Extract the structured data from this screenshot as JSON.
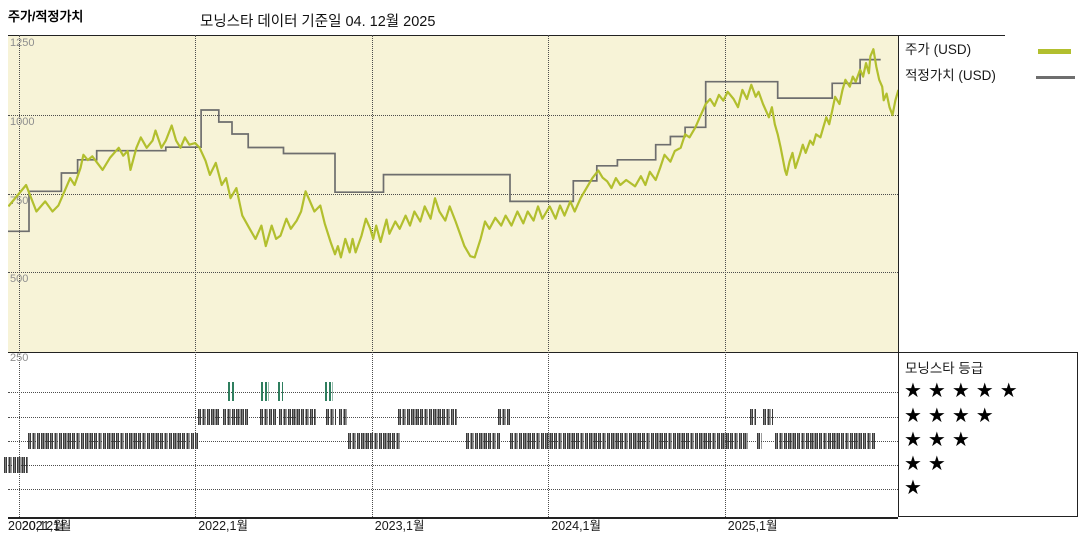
{
  "header": {
    "title": "주가/적정가치",
    "as_of": "모닝스타 데이터 기준일 04. 12월 2025"
  },
  "legend": {
    "price_label": "주가 (USD)",
    "fair_value_label": "적정가치 (USD)"
  },
  "rating_legend": {
    "title": "모닝스타 등급",
    "rows": [
      "★★★★★",
      "★★★★",
      "★★★",
      "★★",
      "★"
    ]
  },
  "colors": {
    "price_line": "#b2bf2e",
    "fair_value_line": "#6e6e6e",
    "plot_background": "#f7f3d7",
    "rating_tick_dark": "#3a3a3a",
    "rating_tick_green": "#2f7e5e",
    "grid_dotted": "#4d4d4d",
    "border": "#222222"
  },
  "y_axis": {
    "ticks": [
      1250,
      1000,
      750,
      500,
      250
    ],
    "inner_gridlines": [
      1000,
      750,
      500
    ],
    "min": 250,
    "max": 1250
  },
  "x_axis": {
    "unit": "months since 2020-12",
    "gridline_months": [
      1,
      13,
      25,
      37,
      49
    ],
    "labels": [
      {
        "month": 0,
        "text": "2020,12월"
      },
      {
        "month": 1,
        "text": "2021,1월"
      },
      {
        "month": 13,
        "text": "2022,1월"
      },
      {
        "month": 25,
        "text": "2023,1월"
      },
      {
        "month": 37,
        "text": "2024,1월"
      },
      {
        "month": 49,
        "text": "2025,1월"
      }
    ]
  },
  "chart_data": {
    "type": "line",
    "title": "주가/적정가치",
    "x_unit": "months since 2020-12",
    "ylim": [
      250,
      1250
    ],
    "series": [
      {
        "name": "주가 (USD)",
        "kind": "price",
        "points": [
          [
            0.3,
            709
          ],
          [
            1.5,
            777
          ],
          [
            2.2,
            693
          ],
          [
            2.8,
            725
          ],
          [
            3.3,
            693
          ],
          [
            3.7,
            712
          ],
          [
            4.5,
            799
          ],
          [
            4.8,
            777
          ],
          [
            5.2,
            831
          ],
          [
            5.4,
            873
          ],
          [
            5.7,
            856
          ],
          [
            6.0,
            868
          ],
          [
            6.7,
            825
          ],
          [
            7.2,
            863
          ],
          [
            7.8,
            895
          ],
          [
            8.1,
            870
          ],
          [
            8.4,
            885
          ],
          [
            8.6,
            825
          ],
          [
            9.0,
            895
          ],
          [
            9.3,
            928
          ],
          [
            9.7,
            895
          ],
          [
            10.1,
            918
          ],
          [
            10.3,
            950
          ],
          [
            10.7,
            895
          ],
          [
            11.0,
            918
          ],
          [
            11.4,
            966
          ],
          [
            11.7,
            918
          ],
          [
            12.0,
            895
          ],
          [
            12.3,
            928
          ],
          [
            12.6,
            905
          ],
          [
            13.0,
            910
          ],
          [
            13.3,
            895
          ],
          [
            13.7,
            854
          ],
          [
            14.0,
            809
          ],
          [
            14.4,
            847
          ],
          [
            14.8,
            777
          ],
          [
            15.1,
            799
          ],
          [
            15.4,
            735
          ],
          [
            15.8,
            767
          ],
          [
            16.2,
            680
          ],
          [
            16.7,
            638
          ],
          [
            17.1,
            606
          ],
          [
            17.5,
            648
          ],
          [
            17.8,
            583
          ],
          [
            18.2,
            648
          ],
          [
            18.5,
            606
          ],
          [
            18.8,
            616
          ],
          [
            19.2,
            670
          ],
          [
            19.5,
            638
          ],
          [
            19.9,
            664
          ],
          [
            20.2,
            693
          ],
          [
            20.5,
            757
          ],
          [
            21.1,
            693
          ],
          [
            21.5,
            712
          ],
          [
            21.8,
            655
          ],
          [
            22.2,
            596
          ],
          [
            22.5,
            557
          ],
          [
            22.7,
            583
          ],
          [
            22.9,
            547
          ],
          [
            23.2,
            606
          ],
          [
            23.5,
            563
          ],
          [
            23.7,
            606
          ],
          [
            23.9,
            563
          ],
          [
            24.3,
            616
          ],
          [
            24.6,
            670
          ],
          [
            24.9,
            638
          ],
          [
            25.1,
            606
          ],
          [
            25.3,
            648
          ],
          [
            25.6,
            596
          ],
          [
            25.8,
            632
          ],
          [
            26.0,
            667
          ],
          [
            26.2,
            622
          ],
          [
            26.6,
            661
          ],
          [
            26.9,
            638
          ],
          [
            27.3,
            680
          ],
          [
            27.6,
            648
          ],
          [
            27.9,
            693
          ],
          [
            28.3,
            661
          ],
          [
            28.6,
            709
          ],
          [
            29.0,
            670
          ],
          [
            29.3,
            735
          ],
          [
            29.6,
            693
          ],
          [
            30.0,
            664
          ],
          [
            30.3,
            709
          ],
          [
            30.7,
            661
          ],
          [
            31.0,
            622
          ],
          [
            31.3,
            583
          ],
          [
            31.7,
            551
          ],
          [
            32.0,
            547
          ],
          [
            32.4,
            606
          ],
          [
            32.7,
            661
          ],
          [
            33.0,
            638
          ],
          [
            33.4,
            673
          ],
          [
            33.8,
            648
          ],
          [
            34.1,
            680
          ],
          [
            34.5,
            648
          ],
          [
            34.9,
            693
          ],
          [
            35.3,
            655
          ],
          [
            35.6,
            693
          ],
          [
            36.0,
            664
          ],
          [
            36.3,
            709
          ],
          [
            36.6,
            670
          ],
          [
            37.1,
            709
          ],
          [
            37.5,
            670
          ],
          [
            37.8,
            712
          ],
          [
            38.1,
            680
          ],
          [
            38.5,
            725
          ],
          [
            38.8,
            693
          ],
          [
            39.2,
            735
          ],
          [
            39.6,
            767
          ],
          [
            40.0,
            799
          ],
          [
            40.4,
            823
          ],
          [
            40.7,
            800
          ],
          [
            41.0,
            789
          ],
          [
            41.3,
            767
          ],
          [
            41.6,
            799
          ],
          [
            41.9,
            777
          ],
          [
            42.3,
            793
          ],
          [
            42.6,
            783
          ],
          [
            42.9,
            773
          ],
          [
            43.3,
            805
          ],
          [
            43.6,
            777
          ],
          [
            43.9,
            819
          ],
          [
            44.3,
            793
          ],
          [
            44.6,
            831
          ],
          [
            44.9,
            873
          ],
          [
            45.3,
            851
          ],
          [
            45.6,
            885
          ],
          [
            46.0,
            895
          ],
          [
            46.3,
            938
          ],
          [
            46.6,
            928
          ],
          [
            47.0,
            960
          ],
          [
            47.3,
            992
          ],
          [
            47.7,
            1034
          ],
          [
            48.0,
            1050
          ],
          [
            48.3,
            1028
          ],
          [
            48.6,
            1063
          ],
          [
            48.9,
            1045
          ],
          [
            49.2,
            1073
          ],
          [
            49.6,
            1050
          ],
          [
            49.9,
            1024
          ],
          [
            50.2,
            1079
          ],
          [
            50.5,
            1050
          ],
          [
            50.8,
            1095
          ],
          [
            51.1,
            1057
          ],
          [
            51.3,
            1073
          ],
          [
            51.6,
            1034
          ],
          [
            52.0,
            992
          ],
          [
            52.2,
            1024
          ],
          [
            52.4,
            970
          ],
          [
            52.6,
            938
          ],
          [
            52.8,
            895
          ],
          [
            53.1,
            823
          ],
          [
            53.2,
            809
          ],
          [
            53.4,
            851
          ],
          [
            53.6,
            879
          ],
          [
            53.8,
            831
          ],
          [
            54.1,
            873
          ],
          [
            54.3,
            905
          ],
          [
            54.5,
            879
          ],
          [
            54.8,
            918
          ],
          [
            55.0,
            905
          ],
          [
            55.2,
            938
          ],
          [
            55.5,
            928
          ],
          [
            55.7,
            960
          ],
          [
            55.9,
            992
          ],
          [
            56.1,
            970
          ],
          [
            56.3,
            1013
          ],
          [
            56.5,
            1057
          ],
          [
            56.8,
            1034
          ],
          [
            57.0,
            1079
          ],
          [
            57.2,
            1111
          ],
          [
            57.5,
            1089
          ],
          [
            57.7,
            1121
          ],
          [
            57.9,
            1105
          ],
          [
            58.2,
            1143
          ],
          [
            58.4,
            1121
          ],
          [
            58.6,
            1164
          ],
          [
            58.8,
            1132
          ],
          [
            58.9,
            1186
          ],
          [
            59.1,
            1208
          ],
          [
            59.3,
            1153
          ],
          [
            59.5,
            1111
          ],
          [
            59.7,
            1089
          ],
          [
            59.8,
            1046
          ],
          [
            60.0,
            1067
          ],
          [
            60.2,
            1024
          ],
          [
            60.4,
            999
          ],
          [
            60.6,
            1046
          ],
          [
            60.8,
            1079
          ]
        ]
      },
      {
        "name": "적정가치 (USD)",
        "kind": "step",
        "steps": [
          [
            0,
            630
          ],
          [
            1.7,
            757
          ],
          [
            3.9,
            815
          ],
          [
            5.0,
            857
          ],
          [
            6.3,
            886
          ],
          [
            11.0,
            897
          ],
          [
            13.4,
            1015
          ],
          [
            14.6,
            977
          ],
          [
            15.5,
            939
          ],
          [
            16.6,
            896
          ],
          [
            19.0,
            877
          ],
          [
            22.5,
            754
          ],
          [
            25.8,
            810
          ],
          [
            34.4,
            725
          ],
          [
            38.7,
            790
          ],
          [
            40.3,
            838
          ],
          [
            41.7,
            857
          ],
          [
            44.3,
            905
          ],
          [
            45.3,
            931
          ],
          [
            46.3,
            960
          ],
          [
            47.7,
            1105
          ],
          [
            52.6,
            1053
          ],
          [
            56.3,
            1100
          ],
          [
            58.2,
            1175
          ]
        ],
        "end_month": 59.6
      }
    ],
    "ratings_timeline": {
      "rows": [
        {
          "stars": 5,
          "color": "green",
          "segments": [
            [
              15.2,
              15.7
            ],
            [
              17.5,
              18.0
            ],
            [
              18.6,
              19.0
            ],
            [
              21.8,
              22.4
            ]
          ]
        },
        {
          "stars": 4,
          "color": "dark",
          "segments": [
            [
              13.2,
              14.7
            ],
            [
              14.9,
              16.6
            ],
            [
              17.4,
              18.5
            ],
            [
              18.7,
              21.2
            ],
            [
              21.9,
              22.6
            ],
            [
              22.8,
              23.4
            ],
            [
              26.8,
              30.8
            ],
            [
              33.6,
              34.4
            ],
            [
              50.7,
              51.1
            ],
            [
              51.6,
              52.3
            ]
          ]
        },
        {
          "stars": 3,
          "color": "dark",
          "segments": [
            [
              1.6,
              13.2
            ],
            [
              23.4,
              26.9
            ],
            [
              31.4,
              33.7
            ],
            [
              34.4,
              50.6
            ],
            [
              51.2,
              51.5
            ],
            [
              52.4,
              59.3
            ]
          ]
        },
        {
          "stars": 2,
          "color": "dark",
          "segments": [
            [
              0.0,
              1.6
            ]
          ]
        },
        {
          "stars": 1,
          "color": "dark",
          "segments": []
        }
      ]
    }
  }
}
